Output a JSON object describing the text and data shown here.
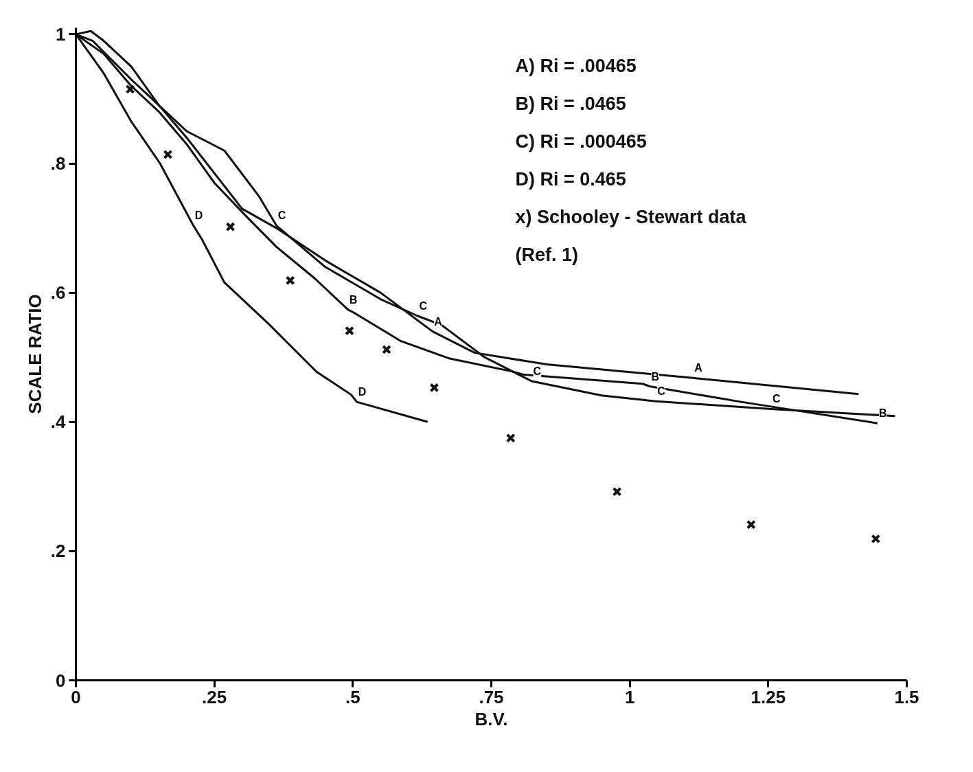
{
  "chart_data": {
    "type": "line",
    "xlabel": "B.V.",
    "ylabel": "SCALE RATIO",
    "xlim": [
      0,
      1.5
    ],
    "ylim": [
      0,
      1.01
    ],
    "xticks": [
      {
        "value": 0,
        "label": "0"
      },
      {
        "value": 0.25,
        "label": ".25"
      },
      {
        "value": 0.5,
        "label": ".5"
      },
      {
        "value": 0.75,
        "label": ".75"
      },
      {
        "value": 1,
        "label": "1"
      },
      {
        "value": 1.25,
        "label": "1.25"
      },
      {
        "value": 1.5,
        "label": "1.5"
      }
    ],
    "yticks": [
      {
        "value": 0,
        "label": "0"
      },
      {
        "value": 0.2,
        "label": ".2"
      },
      {
        "value": 0.4,
        "label": ".4"
      },
      {
        "value": 0.6,
        "label": ".6"
      },
      {
        "value": 0.8,
        "label": ".8"
      },
      {
        "value": 1,
        "label": "1"
      }
    ],
    "line_style": "solid",
    "marker": "none",
    "series": [
      {
        "color": "#111111",
        "x": [
          0,
          0.03,
          0.1,
          0.15,
          0.2,
          0.3,
          0.362,
          0.45,
          0.55,
          0.644,
          0.72,
          0.85,
          1.114,
          1.413
        ],
        "values": [
          1.0,
          0.99,
          0.93,
          0.89,
          0.84,
          0.73,
          0.7,
          0.65,
          0.6,
          0.54,
          0.507,
          0.489,
          0.468,
          0.443
        ]
      },
      {
        "color": "#111111",
        "x": [
          0,
          0.05,
          0.1,
          0.15,
          0.2,
          0.25,
          0.309,
          0.362,
          0.43,
          0.491,
          0.506,
          0.587,
          0.675,
          0.788,
          0.809,
          1.023,
          1.036,
          1.201,
          1.447
        ],
        "values": [
          1.0,
          0.97,
          0.92,
          0.88,
          0.83,
          0.77,
          0.717,
          0.671,
          0.623,
          0.574,
          0.567,
          0.525,
          0.498,
          0.478,
          0.473,
          0.459,
          0.455,
          0.431,
          0.398
        ]
      },
      {
        "color": "#111111",
        "x": [
          0,
          0.027,
          0.05,
          0.1,
          0.15,
          0.2,
          0.268,
          0.33,
          0.362,
          0.45,
          0.55,
          0.617,
          0.66,
          0.738,
          0.823,
          0.949,
          1.047,
          1.255,
          1.479
        ],
        "values": [
          1.0,
          1.005,
          0.99,
          0.95,
          0.89,
          0.85,
          0.82,
          0.75,
          0.704,
          0.64,
          0.59,
          0.564,
          0.55,
          0.5,
          0.463,
          0.441,
          0.432,
          0.42,
          0.409
        ]
      },
      {
        "color": "#111111",
        "x": [
          0,
          0.05,
          0.1,
          0.152,
          0.212,
          0.228,
          0.268,
          0.35,
          0.434,
          0.497,
          0.507,
          0.635
        ],
        "values": [
          1.0,
          0.94,
          0.865,
          0.8,
          0.704,
          0.682,
          0.616,
          0.55,
          0.478,
          0.442,
          0.431,
          0.4
        ]
      },
      {
        "type": "scatter",
        "marker": "cross",
        "color": "#111111",
        "x": [
          0.098,
          0.166,
          0.279,
          0.387,
          0.494,
          0.561,
          0.647,
          0.785,
          0.977,
          1.219,
          1.444
        ],
        "values": [
          0.915,
          0.814,
          0.702,
          0.619,
          0.541,
          0.512,
          0.453,
          0.375,
          0.292,
          0.241,
          0.219
        ]
      }
    ],
    "annotations": [
      "A)  Ri = .00465",
      "B)  Ri = .0465",
      "C)  Ri = .000465",
      "D)   Ri = 0.465",
      "x)  Schooley - Stewart data",
      "(Ref. 1)",
      {
        "text": "A",
        "x": 0.644,
        "y": 0.54
      },
      {
        "text": "A",
        "x": 1.114,
        "y": 0.468
      },
      {
        "text": "B",
        "x": 0.491,
        "y": 0.574
      },
      {
        "text": "B",
        "x": 1.036,
        "y": 0.455
      },
      {
        "text": "B",
        "x": 1.447,
        "y": 0.398
      },
      {
        "text": "C",
        "x": 0.362,
        "y": 0.704
      },
      {
        "text": "C",
        "x": 0.617,
        "y": 0.564
      },
      {
        "text": "C",
        "x": 0.823,
        "y": 0.463
      },
      {
        "text": "C",
        "x": 1.047,
        "y": 0.432
      },
      {
        "text": "C",
        "x": 1.255,
        "y": 0.42
      },
      {
        "text": "D",
        "x": 0.212,
        "y": 0.704
      },
      {
        "text": "D",
        "x": 0.507,
        "y": 0.431
      }
    ]
  }
}
